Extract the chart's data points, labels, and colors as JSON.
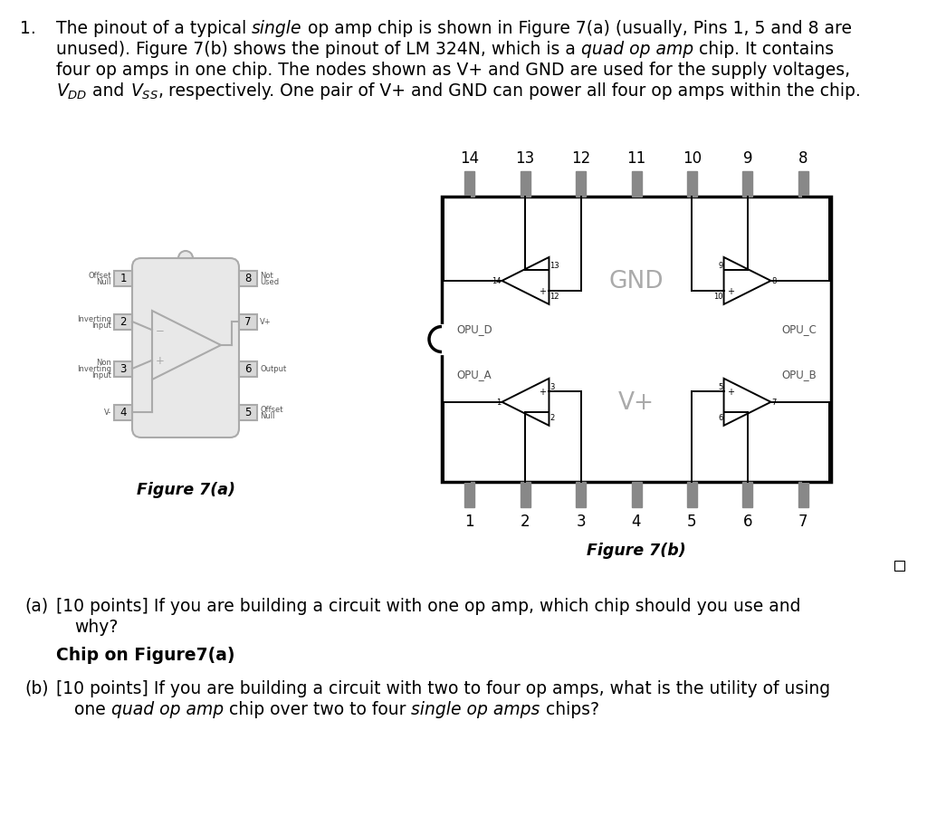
{
  "bg_color": "#ffffff",
  "chip_gray": "#aaaaaa",
  "chip_facecolor": "#e8e8e8",
  "chip_lw": 1.5,
  "quad_color": "#000000",
  "quad_lw": 2.5,
  "pin_gray": "#888888",
  "int_color": "#000000",
  "gnd_vplus_color": "#aaaaaa",
  "fig_a_caption": "Figure 7(a)",
  "fig_b_caption": "Figure 7(b)",
  "top_pins": [
    "14",
    "13",
    "12",
    "11",
    "10",
    "9",
    "8"
  ],
  "bot_pins": [
    "1",
    "2",
    "3",
    "4",
    "5",
    "6",
    "7"
  ],
  "left_pins_a": [
    "1",
    "2",
    "3",
    "4"
  ],
  "right_pins_a": [
    "8",
    "7",
    "6",
    "5"
  ]
}
